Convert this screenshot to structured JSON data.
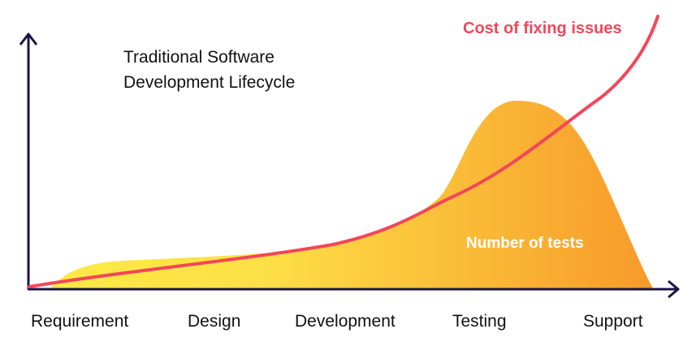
{
  "title": {
    "line1": "Traditional Software",
    "line2": "Development Lifecycle"
  },
  "cost_curve": {
    "label": "Cost of fixing issues",
    "color": "#f3465a"
  },
  "tests_area": {
    "label": "Number of tests",
    "gradient_start": "#fdea45",
    "gradient_end": "#f79a2a"
  },
  "axis_color": "#1a1446",
  "stages": [
    "Requirement",
    "Design",
    "Development",
    "Testing",
    "Support"
  ]
}
